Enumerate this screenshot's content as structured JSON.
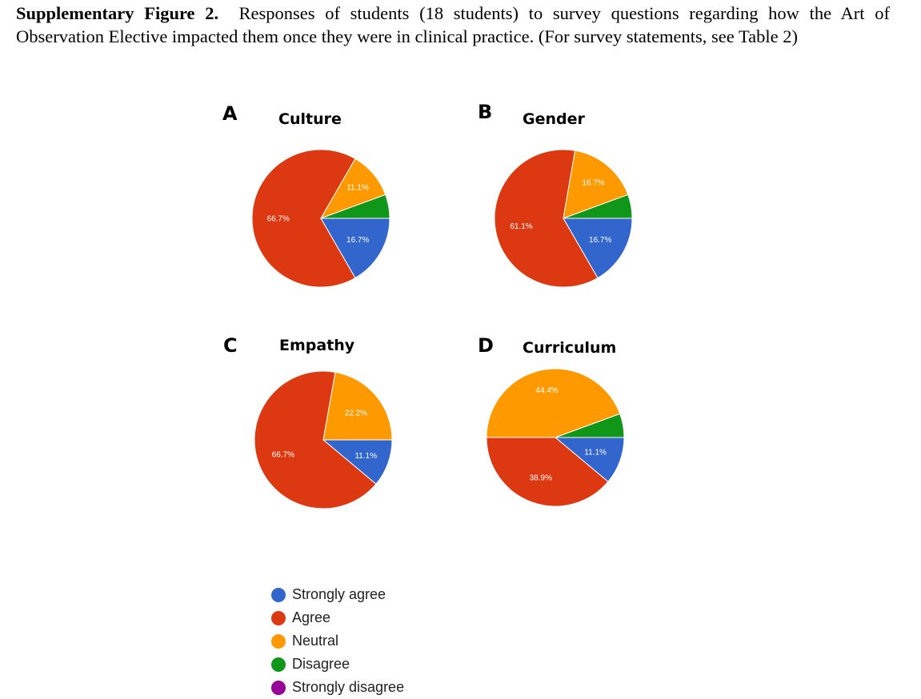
{
  "caption": {
    "bold": "Supplementary Figure 2.",
    "text": "Responses of students (18 students) to survey questions regarding how the Art of Observation Elective impacted them once they were in clinical practice. (For survey statements, see Table 2)"
  },
  "colors": {
    "Strongly agree": "#3366cc",
    "Agree": "#dc3912",
    "Neutral": "#ff9900",
    "Disagree": "#109618",
    "Strongly disagree": "#990099"
  },
  "legend": [
    "Strongly agree",
    "Agree",
    "Neutral",
    "Disagree",
    "Strongly disagree"
  ],
  "chart_data": [
    {
      "type": "pie",
      "panel": "A",
      "title": "Culture",
      "slices": [
        {
          "name": "Strongly agree",
          "value": 16.7,
          "label": "16.7%"
        },
        {
          "name": "Agree",
          "value": 66.7,
          "label": "66.7%"
        },
        {
          "name": "Neutral",
          "value": 11.1,
          "label": "11.1%"
        },
        {
          "name": "Disagree",
          "value": 5.6,
          "label": ""
        },
        {
          "name": "Strongly disagree",
          "value": 0,
          "label": ""
        }
      ]
    },
    {
      "type": "pie",
      "panel": "B",
      "title": "Gender",
      "slices": [
        {
          "name": "Strongly agree",
          "value": 16.7,
          "label": "16.7%"
        },
        {
          "name": "Agree",
          "value": 61.1,
          "label": "61.1%"
        },
        {
          "name": "Neutral",
          "value": 16.7,
          "label": "16.7%"
        },
        {
          "name": "Disagree",
          "value": 5.6,
          "label": ""
        },
        {
          "name": "Strongly disagree",
          "value": 0,
          "label": ""
        }
      ]
    },
    {
      "type": "pie",
      "panel": "C",
      "title": "Empathy",
      "slices": [
        {
          "name": "Strongly agree",
          "value": 11.1,
          "label": "11.1%"
        },
        {
          "name": "Agree",
          "value": 66.7,
          "label": "66.7%"
        },
        {
          "name": "Neutral",
          "value": 22.2,
          "label": "22.2%"
        },
        {
          "name": "Disagree",
          "value": 0,
          "label": ""
        },
        {
          "name": "Strongly disagree",
          "value": 0,
          "label": ""
        }
      ]
    },
    {
      "type": "pie",
      "panel": "D",
      "title": "Curriculum",
      "slices": [
        {
          "name": "Strongly agree",
          "value": 11.1,
          "label": "11.1%"
        },
        {
          "name": "Agree",
          "value": 38.9,
          "label": "38.9%"
        },
        {
          "name": "Neutral",
          "value": 44.4,
          "label": "44.4%"
        },
        {
          "name": "Disagree",
          "value": 5.6,
          "label": ""
        },
        {
          "name": "Strongly disagree",
          "value": 0,
          "label": ""
        }
      ]
    }
  ]
}
